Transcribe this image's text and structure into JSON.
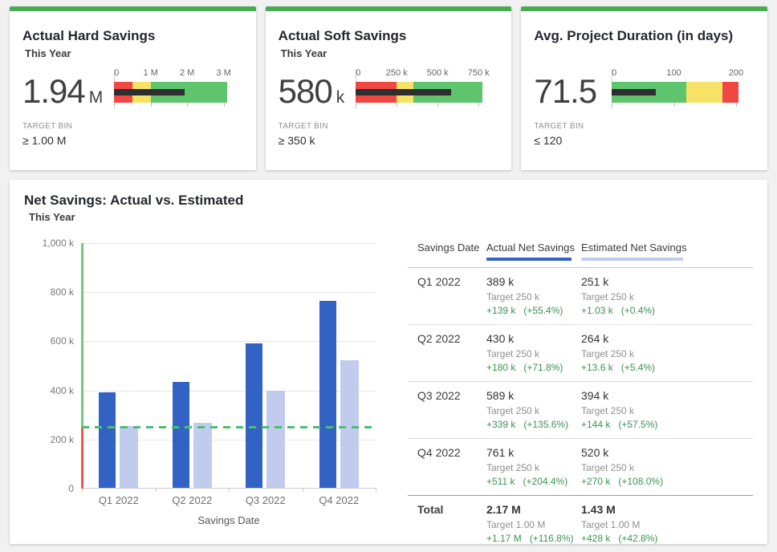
{
  "colors": {
    "card_top": "#48ab53",
    "red": "#f04743",
    "yellow": "#f5e266",
    "green": "#5ec46d",
    "measure_black": "#2e2e2e",
    "actual_blue": "#3362c5",
    "estimated_lavender": "#c1cbee",
    "target_green": "#4dbd74",
    "axis_green": "#6ecb7e",
    "axis_red": "#f4534e",
    "delta_green": "#3a9255",
    "grid": "#e6e6e6"
  },
  "kpi_cards": [
    {
      "title": "Actual Hard Savings",
      "subtitle": "This Year",
      "value": "1.94",
      "unit": "M",
      "target_bin_label": "TARGET BIN",
      "target_bin_value": "≥ 1.00 M",
      "bullet": {
        "max": 3090000,
        "measure": 1940000,
        "ticks": [
          {
            "value": 0,
            "label": "0"
          },
          {
            "value": 1000000,
            "label": "1 M"
          },
          {
            "value": 2000000,
            "label": "2 M"
          },
          {
            "value": 3000000,
            "label": "3 M"
          }
        ],
        "ranges": [
          {
            "color": "red",
            "from": 0,
            "to": 500000
          },
          {
            "color": "yellow",
            "from": 500000,
            "to": 1000000
          },
          {
            "color": "green",
            "from": 1000000,
            "to": 3090000
          }
        ]
      }
    },
    {
      "title": "Actual Soft Savings",
      "subtitle": "This Year",
      "value": "580",
      "unit": "k",
      "target_bin_label": "TARGET BIN",
      "target_bin_value": "≥ 350 k",
      "bullet": {
        "max": 775000,
        "measure": 580000,
        "ticks": [
          {
            "value": 0,
            "label": "0"
          },
          {
            "value": 250000,
            "label": "250 k"
          },
          {
            "value": 500000,
            "label": "500 k"
          },
          {
            "value": 750000,
            "label": "750 k"
          }
        ],
        "ranges": [
          {
            "color": "red",
            "from": 0,
            "to": 250000
          },
          {
            "color": "yellow",
            "from": 250000,
            "to": 350000
          },
          {
            "color": "green",
            "from": 350000,
            "to": 775000
          }
        ]
      }
    },
    {
      "title": "Avg. Project Duration (in days)",
      "subtitle": "",
      "value": "71.5",
      "unit": "",
      "target_bin_label": "TARGET BIN",
      "target_bin_value": "≤ 120",
      "bullet": {
        "max": 204,
        "measure": 71.5,
        "ticks": [
          {
            "value": 0,
            "label": "0"
          },
          {
            "value": 100,
            "label": "100"
          },
          {
            "value": 200,
            "label": "200"
          }
        ],
        "ranges": [
          {
            "color": "green",
            "from": 0,
            "to": 120
          },
          {
            "color": "yellow",
            "from": 120,
            "to": 178
          },
          {
            "color": "red",
            "from": 178,
            "to": 204
          }
        ]
      }
    }
  ],
  "panel": {
    "title": "Net Savings: Actual vs. Estimated",
    "subtitle": "This Year"
  },
  "chart_data": {
    "type": "bar",
    "title": "Net Savings: Actual vs. Estimated",
    "subtitle": "This Year",
    "categories": [
      "Q1 2022",
      "Q2 2022",
      "Q3 2022",
      "Q4 2022"
    ],
    "series": [
      {
        "name": "Actual Net Savings",
        "color": "#3362c5",
        "values": [
          389000,
          430000,
          589000,
          761000
        ]
      },
      {
        "name": "Estimated Net Savings",
        "color": "#c1cbee",
        "values": [
          251000,
          264000,
          394000,
          520000
        ]
      }
    ],
    "target_line": 250000,
    "xlabel": "Savings Date",
    "ylabel": "",
    "ylim": [
      0,
      1000000
    ],
    "yticks": [
      {
        "value": 0,
        "label": "0"
      },
      {
        "value": 200000,
        "label": "200 k"
      },
      {
        "value": 400000,
        "label": "400 k"
      },
      {
        "value": 600000,
        "label": "600 k"
      },
      {
        "value": 800000,
        "label": "800 k"
      },
      {
        "value": 1000000,
        "label": "1,000 k"
      }
    ],
    "grid": true,
    "legend_position": "table-header"
  },
  "table": {
    "columns": [
      "Savings Date",
      "Actual Net Savings",
      "Estimated Net Savings"
    ],
    "rows": [
      {
        "date": "Q1 2022",
        "total": false,
        "actual": {
          "value": "389 k",
          "target": "Target 250 k",
          "delta": "+139 k",
          "delta_pct": "(+55.4%)"
        },
        "estimated": {
          "value": "251 k",
          "target": "Target 250 k",
          "delta": "+1.03 k",
          "delta_pct": "(+0.4%)"
        }
      },
      {
        "date": "Q2 2022",
        "total": false,
        "actual": {
          "value": "430 k",
          "target": "Target 250 k",
          "delta": "+180 k",
          "delta_pct": "(+71.8%)"
        },
        "estimated": {
          "value": "264 k",
          "target": "Target 250 k",
          "delta": "+13.6 k",
          "delta_pct": "(+5.4%)"
        }
      },
      {
        "date": "Q3 2022",
        "total": false,
        "actual": {
          "value": "589 k",
          "target": "Target 250 k",
          "delta": "+339 k",
          "delta_pct": "(+135.6%)"
        },
        "estimated": {
          "value": "394 k",
          "target": "Target 250 k",
          "delta": "+144 k",
          "delta_pct": "(+57.5%)"
        }
      },
      {
        "date": "Q4 2022",
        "total": false,
        "actual": {
          "value": "761 k",
          "target": "Target 250 k",
          "delta": "+511 k",
          "delta_pct": "(+204.4%)"
        },
        "estimated": {
          "value": "520 k",
          "target": "Target 250 k",
          "delta": "+270 k",
          "delta_pct": "(+108.0%)"
        }
      },
      {
        "date": "Total",
        "total": true,
        "actual": {
          "value": "2.17 M",
          "target": "Target 1.00 M",
          "delta": "+1.17 M",
          "delta_pct": "(+116.8%)"
        },
        "estimated": {
          "value": "1.43 M",
          "target": "Target 1.00 M",
          "delta": "+428 k",
          "delta_pct": "(+42.8%)"
        }
      }
    ]
  }
}
